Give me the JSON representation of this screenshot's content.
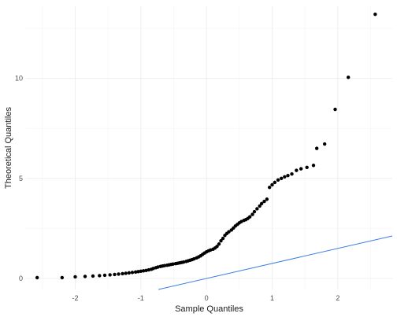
{
  "chart_data": {
    "type": "scatter",
    "title": "",
    "xlabel": "Sample Quantiles",
    "ylabel": "Theoretical Quantiles",
    "xlim": [
      -2.75,
      2.83
    ],
    "ylim": [
      -0.55,
      13.6
    ],
    "xticks": [
      -2,
      -1,
      0,
      1,
      2
    ],
    "yticks": [
      0,
      5,
      10
    ],
    "grid": true,
    "legend": "none",
    "colors": {
      "points": "#000000",
      "line": "#3d7fe0"
    },
    "reference_line": {
      "slope": 0.75,
      "intercept": 0.0
    },
    "series": [
      {
        "points": [
          [
            -2.58,
            0.04
          ],
          [
            -2.2,
            0.04
          ],
          [
            -2.0,
            0.08
          ],
          [
            -1.85,
            0.1
          ],
          [
            -1.73,
            0.12
          ],
          [
            -1.63,
            0.14
          ],
          [
            -1.55,
            0.16
          ],
          [
            -1.47,
            0.18
          ],
          [
            -1.4,
            0.2
          ],
          [
            -1.34,
            0.22
          ],
          [
            -1.28,
            0.24
          ],
          [
            -1.23,
            0.26
          ],
          [
            -1.18,
            0.28
          ],
          [
            -1.13,
            0.3
          ],
          [
            -1.08,
            0.32
          ],
          [
            -1.04,
            0.34
          ],
          [
            -1.0,
            0.36
          ],
          [
            -0.96,
            0.38
          ],
          [
            -0.92,
            0.4
          ],
          [
            -0.88,
            0.43
          ],
          [
            -0.84,
            0.46
          ],
          [
            -0.81,
            0.5
          ],
          [
            -0.77,
            0.54
          ],
          [
            -0.74,
            0.57
          ],
          [
            -0.7,
            0.6
          ],
          [
            -0.67,
            0.62
          ],
          [
            -0.64,
            0.64
          ],
          [
            -0.6,
            0.66
          ],
          [
            -0.57,
            0.68
          ],
          [
            -0.54,
            0.7
          ],
          [
            -0.51,
            0.72
          ],
          [
            -0.47,
            0.74
          ],
          [
            -0.44,
            0.76
          ],
          [
            -0.41,
            0.78
          ],
          [
            -0.38,
            0.8
          ],
          [
            -0.35,
            0.82
          ],
          [
            -0.31,
            0.85
          ],
          [
            -0.28,
            0.88
          ],
          [
            -0.25,
            0.91
          ],
          [
            -0.22,
            0.94
          ],
          [
            -0.19,
            0.98
          ],
          [
            -0.15,
            1.03
          ],
          [
            -0.12,
            1.08
          ],
          [
            -0.09,
            1.13
          ],
          [
            -0.06,
            1.2
          ],
          [
            -0.03,
            1.27
          ],
          [
            0.0,
            1.33
          ],
          [
            0.03,
            1.38
          ],
          [
            0.06,
            1.42
          ],
          [
            0.1,
            1.46
          ],
          [
            0.13,
            1.52
          ],
          [
            0.16,
            1.6
          ],
          [
            0.19,
            1.72
          ],
          [
            0.22,
            1.88
          ],
          [
            0.25,
            2.0
          ],
          [
            0.28,
            2.15
          ],
          [
            0.31,
            2.25
          ],
          [
            0.34,
            2.33
          ],
          [
            0.38,
            2.42
          ],
          [
            0.41,
            2.52
          ],
          [
            0.44,
            2.62
          ],
          [
            0.47,
            2.7
          ],
          [
            0.5,
            2.78
          ],
          [
            0.53,
            2.84
          ],
          [
            0.57,
            2.9
          ],
          [
            0.6,
            2.94
          ],
          [
            0.63,
            3.0
          ],
          [
            0.66,
            3.08
          ],
          [
            0.7,
            3.2
          ],
          [
            0.73,
            3.34
          ],
          [
            0.77,
            3.48
          ],
          [
            0.81,
            3.62
          ],
          [
            0.84,
            3.74
          ],
          [
            0.88,
            3.85
          ],
          [
            0.92,
            3.96
          ],
          [
            0.96,
            4.55
          ],
          [
            1.0,
            4.68
          ],
          [
            1.04,
            4.8
          ],
          [
            1.09,
            4.92
          ],
          [
            1.14,
            5.0
          ],
          [
            1.19,
            5.08
          ],
          [
            1.24,
            5.14
          ],
          [
            1.3,
            5.22
          ],
          [
            1.37,
            5.4
          ],
          [
            1.44,
            5.48
          ],
          [
            1.53,
            5.55
          ],
          [
            1.63,
            5.65
          ],
          [
            1.68,
            6.5
          ],
          [
            1.8,
            6.72
          ],
          [
            1.96,
            8.45
          ],
          [
            2.16,
            10.05
          ],
          [
            2.57,
            13.2
          ]
        ]
      }
    ]
  }
}
